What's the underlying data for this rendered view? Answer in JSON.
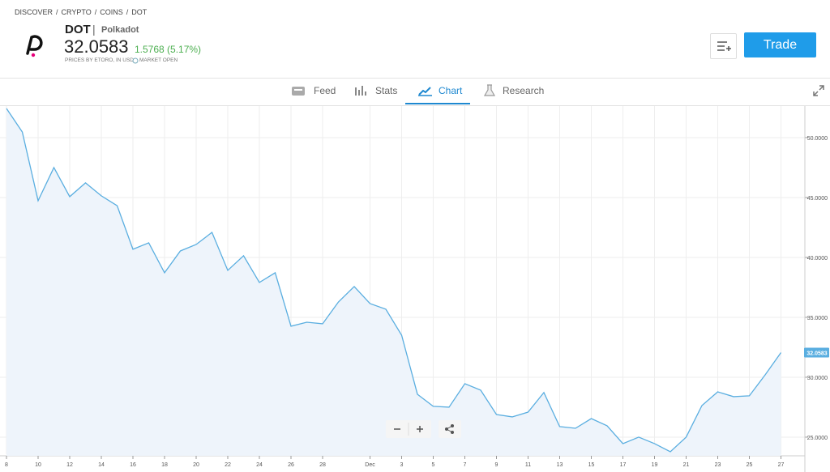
{
  "breadcrumb": [
    "DISCOVER",
    "CRYPTO",
    "COINS",
    "DOT"
  ],
  "instrument": {
    "symbol": "DOT",
    "name": "Polkadot",
    "price": "32.0583",
    "change": "1.5768 (5.17%)",
    "source": "PRICES BY ETORO, IN USD",
    "status": "MARKET OPEN"
  },
  "actions": {
    "trade": "Trade"
  },
  "tabs": [
    "Feed",
    "Stats",
    "Chart",
    "Research"
  ],
  "chart_data": {
    "type": "line",
    "categories": [
      "8",
      null,
      "10",
      null,
      "12",
      null,
      "14",
      null,
      "16",
      null,
      "18",
      null,
      "20",
      null,
      "22",
      null,
      "24",
      null,
      "26",
      null,
      "28",
      null,
      null,
      "Dec",
      null,
      "3",
      null,
      "5",
      null,
      "7",
      null,
      "9",
      null,
      "11",
      null,
      "13",
      null,
      "15",
      null,
      "17",
      null,
      "19",
      null,
      "21",
      null,
      "23",
      null,
      "25",
      null,
      "27"
    ],
    "series": [
      {
        "color": "#5aaee0",
        "values": [
          52.43,
          50.47,
          44.73,
          47.5,
          45.07,
          46.22,
          45.14,
          44.32,
          40.68,
          41.22,
          38.72,
          40.54,
          41.08,
          42.09,
          38.92,
          40.14,
          37.91,
          38.72,
          34.26,
          34.59,
          34.46,
          36.28,
          37.57,
          36.15,
          35.68,
          33.51,
          28.58,
          27.57,
          27.5,
          29.46,
          28.92,
          26.89,
          26.69,
          27.09,
          28.72,
          25.88,
          25.74,
          26.55,
          25.95,
          24.46,
          25.0,
          24.46,
          23.78,
          25.0,
          27.64,
          28.78,
          28.38,
          28.45,
          30.2,
          32.0583
        ]
      }
    ],
    "ylim": [
      23.24,
      52.7
    ],
    "yticks": [
      {
        "value": 25,
        "label": "25.0000"
      },
      {
        "value": 30,
        "label": "30.0000"
      },
      {
        "value": 35,
        "label": "35.0000"
      },
      {
        "value": 40,
        "label": "40.0000"
      },
      {
        "value": 45,
        "label": "45.0000"
      },
      {
        "value": 50,
        "label": "50.0000"
      }
    ],
    "grid": true
  }
}
